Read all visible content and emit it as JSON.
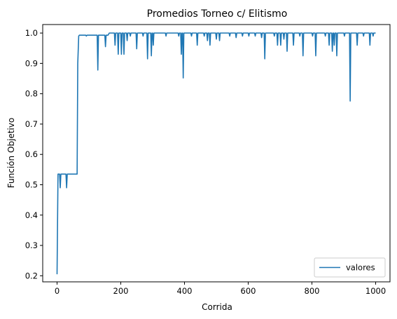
{
  "chart_data": {
    "type": "line",
    "title": "Promedios Torneo c/ Elitismo",
    "xlabel": "Corrida",
    "ylabel": "Función Objetivo",
    "xlim": [
      -45,
      1045
    ],
    "ylim": [
      0.18,
      1.028
    ],
    "xticks": [
      0,
      200,
      400,
      600,
      800,
      1000
    ],
    "xtick_labels": [
      "0",
      "200",
      "400",
      "600",
      "800",
      "1000"
    ],
    "yticks": [
      0.2,
      0.3,
      0.4,
      0.5,
      0.6,
      0.7,
      0.8,
      0.9,
      1.0
    ],
    "ytick_labels": [
      "0.2",
      "0.3",
      "0.4",
      "0.5",
      "0.6",
      "0.7",
      "0.8",
      "0.9",
      "1.0"
    ],
    "grid": false,
    "legend_position": "lower-right",
    "series": [
      {
        "name": "valores",
        "color": "#1f77b4",
        "points": [
          [
            0,
            0.205
          ],
          [
            3,
            0.535
          ],
          [
            8,
            0.535
          ],
          [
            10,
            0.49
          ],
          [
            12,
            0.535
          ],
          [
            28,
            0.535
          ],
          [
            30,
            0.49
          ],
          [
            32,
            0.535
          ],
          [
            63,
            0.535
          ],
          [
            65,
            0.9
          ],
          [
            68,
            0.99
          ],
          [
            70,
            0.993
          ],
          [
            90,
            0.993
          ],
          [
            92,
            0.99
          ],
          [
            94,
            0.993
          ],
          [
            120,
            0.993
          ],
          [
            122,
            0.993
          ],
          [
            126,
            0.993
          ],
          [
            128,
            0.878
          ],
          [
            130,
            0.993
          ],
          [
            140,
            0.993
          ],
          [
            150,
            0.993
          ],
          [
            152,
            0.955
          ],
          [
            154,
            0.993
          ],
          [
            160,
            0.993
          ],
          [
            164,
            1.0
          ],
          [
            180,
            1.0
          ],
          [
            182,
            0.96
          ],
          [
            184,
            1.0
          ],
          [
            190,
            1.0
          ],
          [
            192,
            0.93
          ],
          [
            194,
            1.0
          ],
          [
            200,
            1.0
          ],
          [
            202,
            0.93
          ],
          [
            204,
            1.0
          ],
          [
            208,
            1.0
          ],
          [
            210,
            0.93
          ],
          [
            212,
            1.0
          ],
          [
            218,
            1.0
          ],
          [
            220,
            0.975
          ],
          [
            222,
            1.0
          ],
          [
            228,
            1.0
          ],
          [
            230,
            0.99
          ],
          [
            232,
            1.0
          ],
          [
            248,
            1.0
          ],
          [
            250,
            0.948
          ],
          [
            252,
            1.0
          ],
          [
            268,
            1.0
          ],
          [
            270,
            0.99
          ],
          [
            272,
            1.0
          ],
          [
            282,
            1.0
          ],
          [
            284,
            0.915
          ],
          [
            286,
            1.0
          ],
          [
            294,
            1.0
          ],
          [
            296,
            0.925
          ],
          [
            298,
            1.0
          ],
          [
            300,
            1.0
          ],
          [
            302,
            0.96
          ],
          [
            304,
            1.0
          ],
          [
            340,
            1.0
          ],
          [
            342,
            0.99
          ],
          [
            344,
            1.0
          ],
          [
            380,
            1.0
          ],
          [
            382,
            0.99
          ],
          [
            384,
            1.0
          ],
          [
            388,
            1.0
          ],
          [
            390,
            0.93
          ],
          [
            392,
            1.0
          ],
          [
            394,
            1.0
          ],
          [
            396,
            0.852
          ],
          [
            398,
            1.0
          ],
          [
            420,
            1.0
          ],
          [
            422,
            0.99
          ],
          [
            424,
            1.0
          ],
          [
            438,
            1.0
          ],
          [
            440,
            0.96
          ],
          [
            442,
            1.0
          ],
          [
            460,
            1.0
          ],
          [
            462,
            0.99
          ],
          [
            464,
            1.0
          ],
          [
            470,
            1.0
          ],
          [
            472,
            0.975
          ],
          [
            474,
            1.0
          ],
          [
            478,
            1.0
          ],
          [
            480,
            0.96
          ],
          [
            482,
            1.0
          ],
          [
            498,
            1.0
          ],
          [
            500,
            0.98
          ],
          [
            502,
            1.0
          ],
          [
            508,
            1.0
          ],
          [
            510,
            0.975
          ],
          [
            512,
            1.0
          ],
          [
            540,
            1.0
          ],
          [
            542,
            0.99
          ],
          [
            544,
            1.0
          ],
          [
            560,
            1.0
          ],
          [
            562,
            0.985
          ],
          [
            564,
            1.0
          ],
          [
            580,
            1.0
          ],
          [
            582,
            0.99
          ],
          [
            584,
            1.0
          ],
          [
            600,
            1.0
          ],
          [
            602,
            0.99
          ],
          [
            604,
            1.0
          ],
          [
            620,
            1.0
          ],
          [
            622,
            0.99
          ],
          [
            624,
            1.0
          ],
          [
            640,
            1.0
          ],
          [
            642,
            0.985
          ],
          [
            644,
            1.0
          ],
          [
            650,
            1.0
          ],
          [
            652,
            0.915
          ],
          [
            654,
            1.0
          ],
          [
            680,
            1.0
          ],
          [
            682,
            0.99
          ],
          [
            684,
            1.0
          ],
          [
            690,
            1.0
          ],
          [
            692,
            0.96
          ],
          [
            694,
            1.0
          ],
          [
            700,
            1.0
          ],
          [
            702,
            0.96
          ],
          [
            704,
            1.0
          ],
          [
            710,
            1.0
          ],
          [
            712,
            0.98
          ],
          [
            714,
            1.0
          ],
          [
            720,
            1.0
          ],
          [
            722,
            0.94
          ],
          [
            724,
            1.0
          ],
          [
            740,
            1.0
          ],
          [
            742,
            0.96
          ],
          [
            744,
            1.0
          ],
          [
            760,
            1.0
          ],
          [
            762,
            0.99
          ],
          [
            764,
            1.0
          ],
          [
            770,
            1.0
          ],
          [
            772,
            0.925
          ],
          [
            774,
            1.0
          ],
          [
            800,
            1.0
          ],
          [
            802,
            0.99
          ],
          [
            804,
            1.0
          ],
          [
            810,
            1.0
          ],
          [
            812,
            0.925
          ],
          [
            814,
            1.0
          ],
          [
            840,
            1.0
          ],
          [
            842,
            0.99
          ],
          [
            844,
            1.0
          ],
          [
            852,
            1.0
          ],
          [
            854,
            0.96
          ],
          [
            856,
            1.0
          ],
          [
            862,
            1.0
          ],
          [
            864,
            0.94
          ],
          [
            866,
            1.0
          ],
          [
            868,
            1.0
          ],
          [
            870,
            0.96
          ],
          [
            872,
            1.0
          ],
          [
            876,
            1.0
          ],
          [
            878,
            0.925
          ],
          [
            880,
            1.0
          ],
          [
            900,
            1.0
          ],
          [
            902,
            0.99
          ],
          [
            904,
            1.0
          ],
          [
            918,
            1.0
          ],
          [
            920,
            0.776
          ],
          [
            922,
            1.0
          ],
          [
            940,
            1.0
          ],
          [
            942,
            0.96
          ],
          [
            944,
            1.0
          ],
          [
            960,
            1.0
          ],
          [
            962,
            0.99
          ],
          [
            964,
            1.0
          ],
          [
            980,
            1.0
          ],
          [
            982,
            0.96
          ],
          [
            984,
            1.0
          ],
          [
            990,
            1.0
          ],
          [
            992,
            0.99
          ],
          [
            994,
            1.0
          ],
          [
            1000,
            1.0
          ]
        ]
      }
    ]
  }
}
